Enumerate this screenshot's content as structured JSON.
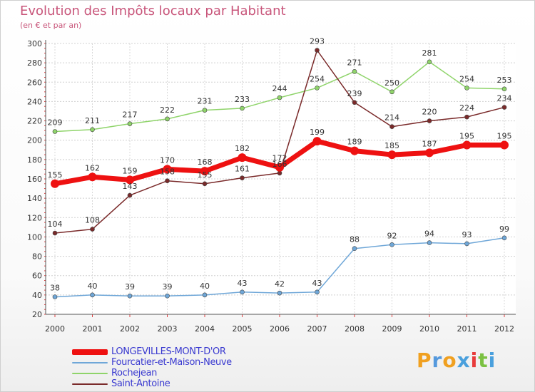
{
  "title": "Evolution des Impôts locaux par Habitant",
  "subtitle": "(en € et par an)",
  "brand": {
    "letters": [
      "P",
      "r",
      "o",
      "x",
      "i",
      "t",
      "i"
    ],
    "colors": [
      "#f0a020",
      "#5599dd",
      "#f0a020",
      "#4aa0dd",
      "#e83c3c",
      "#7bc142",
      "#4aa0dd"
    ]
  },
  "chart_data": {
    "type": "line",
    "x": [
      "2000",
      "2001",
      "2002",
      "2003",
      "2004",
      "2005",
      "2006",
      "2007",
      "2008",
      "2009",
      "2010",
      "2011",
      "2012"
    ],
    "ylim": [
      20,
      300
    ],
    "yticks": [
      20,
      40,
      60,
      80,
      100,
      120,
      140,
      160,
      180,
      200,
      220,
      240,
      260,
      280,
      300
    ],
    "series": [
      {
        "name": "LONGEVILLES-MONT-D'OR",
        "color": "#ee1111",
        "values": [
          155,
          162,
          159,
          170,
          168,
          182,
          172,
          199,
          189,
          185,
          187,
          195,
          195
        ]
      },
      {
        "name": "Fourcatier-et-Maison-Neuve",
        "color": "#6fa7d8",
        "values": [
          38,
          40,
          39,
          39,
          40,
          43,
          42,
          43,
          88,
          92,
          94,
          93,
          99
        ]
      },
      {
        "name": "Rochejean",
        "color": "#8fd46a",
        "values": [
          209,
          211,
          217,
          222,
          231,
          233,
          244,
          254,
          271,
          250,
          281,
          254,
          253
        ]
      },
      {
        "name": "Saint-Antoine",
        "color": "#7a2a2a",
        "values": [
          104,
          108,
          143,
          158,
          155,
          161,
          166,
          293,
          239,
          214,
          220,
          224,
          234
        ]
      }
    ]
  }
}
